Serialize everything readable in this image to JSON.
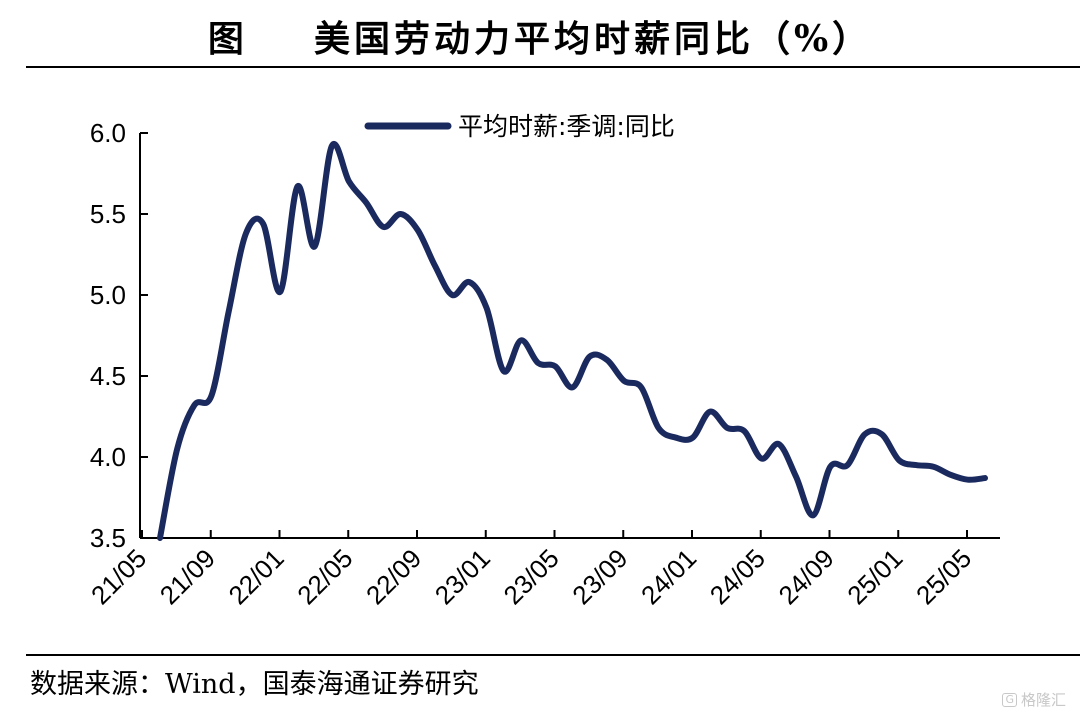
{
  "header": {
    "title": "图    美国劳动力平均时薪同比（%）"
  },
  "footer": {
    "source": "数据来源：Wind，国泰海通证券研究"
  },
  "watermark": {
    "text": "格隆汇",
    "mark": "G"
  },
  "chart_data": {
    "type": "line",
    "title": "图    美国劳动力平均时薪同比（%）",
    "xlabel": "",
    "ylabel": "",
    "ylim": [
      3.5,
      6.0
    ],
    "yticks": [
      "3.5",
      "4.0",
      "4.5",
      "5.0",
      "5.5",
      "6.0"
    ],
    "xticks": [
      "21/05",
      "21/09",
      "22/01",
      "22/05",
      "22/09",
      "23/01",
      "23/05",
      "23/09",
      "24/01",
      "24/05",
      "24/09",
      "25/01",
      "25/05"
    ],
    "legend": "top-center",
    "grid": false,
    "line_color": "#1b2a5e",
    "series": [
      {
        "name": "平均时薪:季调:同比",
        "x": [
          "21/05",
          "21/06",
          "21/07",
          "21/08",
          "21/09",
          "21/10",
          "21/11",
          "21/12",
          "22/01",
          "22/02",
          "22/03",
          "22/04",
          "22/05",
          "22/06",
          "22/07",
          "22/08",
          "22/09",
          "22/10",
          "22/11",
          "22/12",
          "23/01",
          "23/02",
          "23/03",
          "23/04",
          "23/05",
          "23/06",
          "23/07",
          "23/08",
          "23/09",
          "23/10",
          "23/11",
          "23/12",
          "24/01",
          "24/02",
          "24/03",
          "24/04",
          "24/05",
          "24/06",
          "24/07",
          "24/08",
          "24/09",
          "24/10",
          "24/11",
          "24/12",
          "25/01",
          "25/02",
          "25/03",
          "25/04",
          "25/05"
        ],
        "values": [
          3.5,
          4.05,
          4.32,
          4.38,
          4.9,
          5.38,
          5.44,
          5.02,
          5.67,
          5.3,
          5.92,
          5.7,
          5.57,
          5.42,
          5.5,
          5.4,
          5.18,
          5.0,
          5.08,
          4.92,
          4.53,
          4.72,
          4.58,
          4.56,
          4.43,
          4.62,
          4.6,
          4.47,
          4.43,
          4.18,
          4.12,
          4.12,
          4.28,
          4.18,
          4.16,
          3.99,
          4.08,
          3.88,
          3.64,
          3.94,
          3.95,
          4.14,
          4.14,
          3.98,
          3.95,
          3.94,
          3.89,
          3.86,
          3.87
        ]
      }
    ]
  }
}
